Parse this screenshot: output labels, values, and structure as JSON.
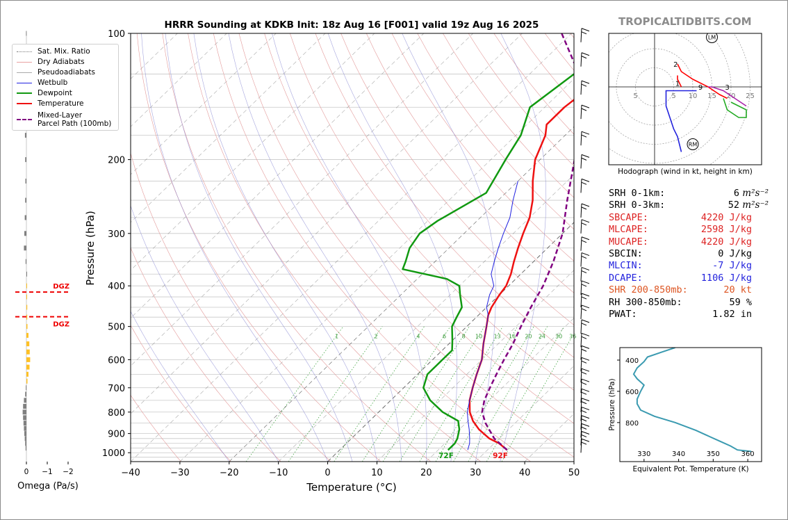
{
  "title": "HRRR Sounding at KDKB Init: 18z Aug 16 [F001] valid 19z Aug 16 2025",
  "brand": "TROPICALTIDBITS.COM",
  "legend": [
    {
      "label": "Sat. Mix. Ratio",
      "color": "#888888",
      "style": "dotted"
    },
    {
      "label": "Dry Adiabats",
      "color": "#e8a0a0",
      "style": "solid"
    },
    {
      "label": "Pseudoadiabats",
      "color": "#aaaaaa",
      "style": "solid"
    },
    {
      "label": "Wetbulb",
      "color": "#2020e0",
      "style": "solid"
    },
    {
      "label": "Dewpoint",
      "color": "#119911",
      "style": "thick"
    },
    {
      "label": "Temperature",
      "color": "#ee1111",
      "style": "thick"
    },
    {
      "label": "Mixed-Layer\nParcel Path (100mb)",
      "color": "#800080",
      "style": "dashed"
    }
  ],
  "omega": {
    "xlabel": "Omega (Pa/s)",
    "ticks": [
      "0",
      "−1",
      "−2"
    ],
    "dgz_label": "DGZ"
  },
  "skewt": {
    "xlabel": "Temperature (°C)",
    "ylabel": "Pressure (hPa)",
    "xticks": [
      "−40",
      "−30",
      "−20",
      "−10",
      "0",
      "10",
      "20",
      "30",
      "40",
      "50"
    ],
    "yticks": [
      "100",
      "200",
      "300",
      "400",
      "500",
      "600",
      "700",
      "800",
      "900",
      "1000"
    ],
    "mixing_ratio_labels": [
      "1",
      "2",
      "4",
      "6",
      "8",
      "10",
      "13",
      "16",
      "20",
      "24",
      "30",
      "36"
    ],
    "surface_t_label": "92F",
    "surface_td_label": "72F"
  },
  "hodograph": {
    "caption": "Hodograph (wind in kt, height in km)",
    "ring_labels": [
      "5",
      "5",
      "10",
      "15",
      "20",
      "25"
    ],
    "height_labels": [
      "1",
      "2",
      "3",
      "9"
    ],
    "lm_label": "LM",
    "rm_label": "RM"
  },
  "stats": [
    {
      "label": "SRH 0-1km:",
      "value": "6",
      "unit": "m²s⁻²",
      "color": "#000000"
    },
    {
      "label": "SRH 0-3km:",
      "value": "52",
      "unit": "m²s⁻²",
      "color": "#000000"
    },
    {
      "label": "SBCAPE:",
      "value": "4220 J/kg",
      "unit": "",
      "color": "#dd2222"
    },
    {
      "label": "MLCAPE:",
      "value": "2598 J/kg",
      "unit": "",
      "color": "#dd2222"
    },
    {
      "label": "MUCAPE:",
      "value": "4220 J/kg",
      "unit": "",
      "color": "#dd2222"
    },
    {
      "label": "SBCIN:",
      "value": "0 J/kg",
      "unit": "",
      "color": "#000000"
    },
    {
      "label": "MLCIN:",
      "value": "-7 J/kg",
      "unit": "",
      "color": "#2222dd"
    },
    {
      "label": "DCAPE:",
      "value": "1106 J/kg",
      "unit": "",
      "color": "#2222dd"
    },
    {
      "label": "SHR 200-850mb:",
      "value": "20 kt",
      "unit": "",
      "color": "#dd5522"
    },
    {
      "label": "RH 300-850mb:",
      "value": "59 %",
      "unit": "",
      "color": "#000000"
    },
    {
      "label": "PWAT:",
      "value": "1.82 in",
      "unit": "",
      "color": "#000000"
    }
  ],
  "chart_data": [
    {
      "type": "line",
      "title": "HRRR Sounding at KDKB Init: 18z Aug 16 [F001] valid 19z Aug 16 2025",
      "xlabel": "Temperature (°C)",
      "ylabel": "Pressure (hPa)",
      "xlim": [
        -40,
        50
      ],
      "ylim": [
        1050,
        100
      ],
      "y_scale": "log",
      "series": [
        {
          "name": "Temperature",
          "color": "#ee1111",
          "points": [
            [
              34,
              985
            ],
            [
              31,
              950
            ],
            [
              28,
              925
            ],
            [
              24,
              880
            ],
            [
              21,
              840
            ],
            [
              18.5,
              800
            ],
            [
              16,
              750
            ],
            [
              14,
              700
            ],
            [
              12,
              650
            ],
            [
              10,
              600
            ],
            [
              7,
              550
            ],
            [
              4,
              500
            ],
            [
              2,
              470
            ],
            [
              1,
              450
            ],
            [
              0,
              420
            ],
            [
              -0.5,
              400
            ],
            [
              -2,
              375
            ],
            [
              -4,
              350
            ],
            [
              -6,
              325
            ],
            [
              -8,
              300
            ],
            [
              -10,
              275
            ],
            [
              -13,
              250
            ],
            [
              -17,
              225
            ],
            [
              -21,
              200
            ],
            [
              -24,
              175
            ],
            [
              -26,
              165
            ],
            [
              -26,
              150
            ],
            [
              -25,
              135
            ],
            [
              -23,
              120
            ],
            [
              -18,
              100
            ]
          ]
        },
        {
          "name": "Dewpoint",
          "color": "#119911",
          "points": [
            [
              22,
              985
            ],
            [
              22,
              950
            ],
            [
              21.5,
              925
            ],
            [
              20,
              880
            ],
            [
              18,
              840
            ],
            [
              13,
              800
            ],
            [
              8,
              750
            ],
            [
              4,
              700
            ],
            [
              2,
              650
            ],
            [
              2,
              600
            ],
            [
              2,
              570
            ],
            [
              0,
              540
            ],
            [
              -3,
              500
            ],
            [
              -4,
              475
            ],
            [
              -5,
              450
            ],
            [
              -8,
              420
            ],
            [
              -10,
              400
            ],
            [
              -14,
              385
            ],
            [
              -25,
              365
            ],
            [
              -26,
              350
            ],
            [
              -28,
              325
            ],
            [
              -29,
              300
            ],
            [
              -28,
              280
            ],
            [
              -24,
              240
            ],
            [
              -27,
              200
            ],
            [
              -29,
              175
            ],
            [
              -33,
              150
            ],
            [
              -31,
              125
            ],
            [
              -29,
              100
            ]
          ]
        },
        {
          "name": "Wetbulb",
          "color": "#2020e0",
          "points": [
            [
              26,
              985
            ],
            [
              25,
              950
            ],
            [
              24,
              925
            ],
            [
              22,
              880
            ],
            [
              20,
              840
            ],
            [
              18,
              800
            ],
            [
              16,
              750
            ],
            [
              14,
              700
            ],
            [
              12,
              650
            ],
            [
              10,
              600
            ],
            [
              7,
              550
            ],
            [
              4,
              500
            ],
            [
              2,
              470
            ],
            [
              0,
              450
            ],
            [
              -2,
              420
            ],
            [
              -3,
              400
            ],
            [
              -6,
              375
            ],
            [
              -8,
              350
            ],
            [
              -10,
              325
            ],
            [
              -12,
              300
            ],
            [
              -14,
              275
            ],
            [
              -17,
              250
            ],
            [
              -20,
              225
            ]
          ]
        },
        {
          "name": "Mixed-Layer\nParcel Path (100mb)",
          "color": "#800080",
          "points": [
            [
              34,
              985
            ],
            [
              29,
              925
            ],
            [
              24,
              850
            ],
            [
              21,
              800
            ],
            [
              19,
              750
            ],
            [
              17.5,
              700
            ],
            [
              16,
              650
            ],
            [
              14.5,
              600
            ],
            [
              13,
              550
            ],
            [
              11,
              500
            ],
            [
              9,
              450
            ],
            [
              7,
              400
            ],
            [
              4,
              350
            ],
            [
              0,
              300
            ],
            [
              -6,
              250
            ],
            [
              -13,
              200
            ],
            [
              -20,
              160
            ],
            [
              -30,
              125
            ],
            [
              -42,
              100
            ]
          ]
        }
      ]
    },
    {
      "type": "line",
      "title": "",
      "xlabel": "Omega (Pa/s)",
      "ylabel": "Pressure (hPa)",
      "xlim": [
        0.5,
        -2.5
      ],
      "ylim": [
        1050,
        100
      ],
      "y_scale": "log",
      "bars": [
        {
          "p": 975,
          "v": 0.04
        },
        {
          "p": 950,
          "v": 0.06
        },
        {
          "p": 925,
          "v": 0.08
        },
        {
          "p": 900,
          "v": 0.1
        },
        {
          "p": 875,
          "v": 0.12
        },
        {
          "p": 850,
          "v": 0.14
        },
        {
          "p": 825,
          "v": 0.16
        },
        {
          "p": 800,
          "v": 0.18
        },
        {
          "p": 775,
          "v": 0.16
        },
        {
          "p": 750,
          "v": 0.12
        },
        {
          "p": 725,
          "v": 0.06
        },
        {
          "p": 700,
          "v": 0.03
        },
        {
          "p": 675,
          "v": -0.05
        },
        {
          "p": 650,
          "v": -0.1
        },
        {
          "p": 625,
          "v": -0.15
        },
        {
          "p": 600,
          "v": -0.18
        },
        {
          "p": 575,
          "v": -0.16
        },
        {
          "p": 550,
          "v": -0.14
        },
        {
          "p": 525,
          "v": -0.1
        },
        {
          "p": 500,
          "v": -0.05
        },
        {
          "p": 475,
          "v": -0.04
        },
        {
          "p": 450,
          "v": -0.04
        },
        {
          "p": 425,
          "v": -0.03
        },
        {
          "p": 400,
          "v": -0.03
        },
        {
          "p": 375,
          "v": -0.02
        },
        {
          "p": 350,
          "v": 0.04
        },
        {
          "p": 325,
          "v": 0.12
        },
        {
          "p": 300,
          "v": 0.1
        },
        {
          "p": 275,
          "v": 0.08
        },
        {
          "p": 250,
          "v": 0.06
        },
        {
          "p": 225,
          "v": 0.05
        },
        {
          "p": 200,
          "v": 0.06
        },
        {
          "p": 175,
          "v": 0.07
        },
        {
          "p": 150,
          "v": 0.05
        },
        {
          "p": 125,
          "v": 0.03
        },
        {
          "p": 100,
          "v": 0.02
        }
      ],
      "dgz_pressures": [
        414,
        474
      ]
    },
    {
      "type": "line",
      "title": "",
      "xlabel": "Equivalent Pot. Temperature (K)",
      "ylabel": "Pressure (hPa)",
      "xlim": [
        323,
        364
      ],
      "ylim": [
        1050,
        320
      ],
      "xticks": [
        330,
        340,
        350,
        360
      ],
      "yticks": [
        400,
        600,
        800
      ],
      "series": [
        {
          "name": "",
          "color": "#3a9ab0",
          "points": [
            [
              361,
              985
            ],
            [
              357,
              975
            ],
            [
              355,
              950
            ],
            [
              352,
              920
            ],
            [
              349,
              890
            ],
            [
              345,
              850
            ],
            [
              339,
              800
            ],
            [
              333,
              760
            ],
            [
              329,
              720
            ],
            [
              328,
              680
            ],
            [
              328,
              650
            ],
            [
              329,
              600
            ],
            [
              330,
              560
            ],
            [
              328,
              520
            ],
            [
              327,
              490
            ],
            [
              328,
              450
            ],
            [
              330,
              410
            ],
            [
              331,
              380
            ],
            [
              335,
              350
            ],
            [
              339,
              320
            ]
          ]
        }
      ]
    },
    {
      "type": "line",
      "title": "",
      "xlabel": "",
      "ylabel": "",
      "xlim": [
        -12,
        28
      ],
      "ylim": [
        -22,
        14
      ],
      "ring_values": [
        5,
        10,
        15,
        20,
        25
      ],
      "storm_motion": {
        "LM": [
          15,
          13
        ],
        "RM": [
          10,
          -15
        ]
      },
      "series": [
        {
          "name": "",
          "color": "#ff0000",
          "points": [
            [
              6,
              3
            ],
            [
              6,
              2
            ],
            [
              6.5,
              1
            ],
            [
              7,
              0
            ]
          ]
        },
        {
          "name": "",
          "color": "#ff0000",
          "points": [
            [
              6,
              6
            ],
            [
              7,
              4
            ],
            [
              10,
              2
            ],
            [
              14,
              0
            ],
            [
              17,
              -2
            ],
            [
              19,
              -3
            ]
          ]
        },
        {
          "name": "",
          "color": "#2222dd",
          "points": [
            [
              11,
              -1
            ],
            [
              8,
              -1
            ],
            [
              3,
              -1
            ],
            [
              3,
              -5
            ],
            [
              4,
              -8
            ],
            [
              5,
              -11
            ],
            [
              6,
              -13
            ],
            [
              7,
              -17
            ]
          ]
        },
        {
          "name": "",
          "color": "#aa22aa",
          "points": [
            [
              14,
              0
            ],
            [
              15,
              0
            ],
            [
              18,
              -1
            ],
            [
              21,
              -3
            ],
            [
              24,
              -5
            ]
          ]
        },
        {
          "name": "",
          "color": "#22aa22",
          "points": [
            [
              18,
              -3
            ],
            [
              19,
              -6
            ],
            [
              22,
              -8
            ],
            [
              24,
              -8
            ],
            [
              24,
              -6
            ],
            [
              20,
              -4
            ]
          ]
        }
      ]
    }
  ]
}
